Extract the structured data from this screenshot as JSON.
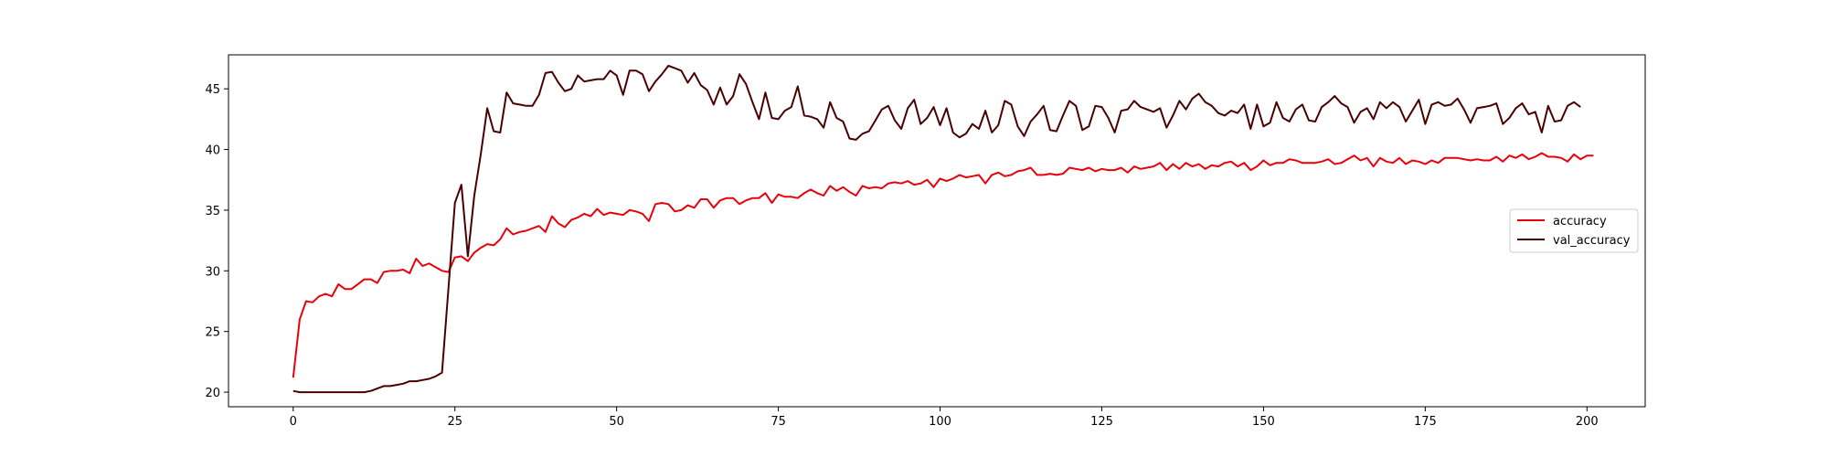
{
  "chart_data": {
    "type": "line",
    "title": "",
    "xlabel": "",
    "ylabel": "",
    "xlim": [
      -10,
      209
    ],
    "ylim": [
      18.8,
      47.8
    ],
    "xticks": [
      0,
      25,
      50,
      75,
      100,
      125,
      150,
      175,
      200
    ],
    "yticks": [
      20,
      25,
      30,
      35,
      40,
      45
    ],
    "xtick_labels": [
      "0",
      "25",
      "50",
      "75",
      "100",
      "125",
      "150",
      "175",
      "200"
    ],
    "ytick_labels": [
      "20",
      "25",
      "30",
      "35",
      "40",
      "45"
    ],
    "grid": false,
    "legend_position": "center-right",
    "series": [
      {
        "name": "accuracy",
        "color": "#e8000b",
        "x_start": 0,
        "values": [
          21.2,
          26.0,
          27.5,
          27.4,
          27.9,
          28.1,
          27.9,
          28.9,
          28.5,
          28.5,
          28.9,
          29.3,
          29.3,
          29.0,
          29.9,
          30.0,
          30.0,
          30.1,
          29.8,
          31.0,
          30.4,
          30.6,
          30.3,
          30.0,
          29.9,
          31.1,
          31.2,
          30.8,
          31.5,
          31.9,
          32.2,
          32.1,
          32.6,
          33.5,
          33.0,
          33.2,
          33.3,
          33.5,
          33.7,
          33.2,
          34.5,
          33.9,
          33.6,
          34.2,
          34.4,
          34.7,
          34.5,
          35.1,
          34.6,
          34.8,
          34.7,
          34.6,
          35.0,
          34.9,
          34.7,
          34.1,
          35.5,
          35.6,
          35.5,
          34.9,
          35.0,
          35.4,
          35.2,
          35.9,
          35.9,
          35.2,
          35.8,
          36.0,
          36.0,
          35.5,
          35.8,
          36.0,
          36.0,
          36.4,
          35.6,
          36.3,
          36.1,
          36.1,
          36.0,
          36.4,
          36.7,
          36.4,
          36.2,
          37.0,
          36.6,
          36.9,
          36.5,
          36.2,
          37.0,
          36.8,
          36.9,
          36.8,
          37.2,
          37.3,
          37.2,
          37.4,
          37.1,
          37.2,
          37.5,
          36.9,
          37.6,
          37.4,
          37.6,
          37.9,
          37.7,
          37.8,
          37.9,
          37.2,
          37.9,
          38.1,
          37.8,
          37.9,
          38.2,
          38.3,
          38.5,
          37.9,
          37.9,
          38.0,
          37.9,
          38.0,
          38.5,
          38.4,
          38.3,
          38.5,
          38.2,
          38.4,
          38.3,
          38.3,
          38.5,
          38.1,
          38.6,
          38.4,
          38.5,
          38.6,
          38.9,
          38.3,
          38.8,
          38.4,
          38.9,
          38.6,
          38.8,
          38.4,
          38.7,
          38.6,
          38.9,
          39.0,
          38.6,
          38.9,
          38.3,
          38.6,
          39.1,
          38.7,
          38.9,
          38.9,
          39.2,
          39.1,
          38.9,
          38.9,
          38.9,
          39.0,
          39.2,
          38.8,
          38.9,
          39.2,
          39.5,
          39.1,
          39.3,
          38.6,
          39.3,
          39.0,
          38.9,
          39.3,
          38.8,
          39.1,
          39.0,
          38.8,
          39.1,
          38.9,
          39.3,
          39.3,
          39.3,
          39.2,
          39.1,
          39.2,
          39.1,
          39.1,
          39.4,
          39.0,
          39.5,
          39.3,
          39.6,
          39.2,
          39.4,
          39.7,
          39.4,
          39.4,
          39.3,
          39.0,
          39.6,
          39.2,
          39.5,
          39.5
        ]
      },
      {
        "name": "val_accuracy",
        "color": "#4a0000",
        "x_start": 0,
        "values": [
          20.1,
          20.0,
          20.0,
          20.0,
          20.0,
          20.0,
          20.0,
          20.0,
          20.0,
          20.0,
          20.0,
          20.0,
          20.1,
          20.3,
          20.5,
          20.5,
          20.6,
          20.7,
          20.9,
          20.9,
          21.0,
          21.1,
          21.3,
          21.6,
          28.5,
          35.6,
          37.1,
          31.2,
          36.2,
          39.6,
          43.4,
          41.5,
          41.4,
          44.7,
          43.8,
          43.7,
          43.6,
          43.6,
          44.5,
          46.3,
          46.4,
          45.5,
          44.8,
          45.0,
          46.1,
          45.6,
          45.7,
          45.8,
          45.8,
          46.5,
          46.1,
          44.5,
          46.5,
          46.5,
          46.2,
          44.8,
          45.6,
          46.2,
          46.9,
          46.7,
          46.5,
          45.5,
          46.3,
          45.3,
          44.9,
          43.7,
          45.1,
          43.7,
          44.4,
          46.2,
          45.4,
          43.9,
          42.5,
          44.7,
          42.6,
          42.5,
          43.2,
          43.5,
          45.2,
          42.8,
          42.7,
          42.5,
          41.8,
          43.9,
          42.6,
          42.3,
          40.9,
          40.8,
          41.3,
          41.5,
          42.4,
          43.3,
          43.6,
          42.4,
          41.7,
          43.4,
          44.1,
          42.1,
          42.6,
          43.5,
          42.0,
          43.4,
          41.4,
          41.0,
          41.3,
          42.1,
          41.7,
          43.2,
          41.4,
          42.0,
          44.0,
          43.7,
          41.9,
          41.1,
          42.3,
          42.9,
          43.6,
          41.6,
          41.5,
          42.8,
          44.0,
          43.6,
          41.6,
          41.9,
          43.6,
          43.5,
          42.6,
          41.4,
          43.2,
          43.3,
          44.0,
          43.5,
          43.3,
          43.1,
          43.4,
          41.8,
          42.8,
          44.0,
          43.3,
          44.2,
          44.6,
          43.9,
          43.6,
          43.0,
          42.8,
          43.2,
          43.0,
          43.7,
          41.7,
          43.7,
          41.9,
          42.2,
          43.9,
          42.6,
          42.3,
          43.3,
          43.7,
          42.4,
          42.3,
          43.5,
          43.9,
          44.4,
          43.8,
          43.5,
          42.2,
          43.1,
          43.4,
          42.5,
          43.9,
          43.4,
          43.9,
          43.5,
          42.3,
          43.2,
          44.1,
          42.1,
          43.7,
          43.9,
          43.6,
          43.7,
          44.2,
          43.3,
          42.2,
          43.4,
          43.5,
          43.6,
          43.8,
          42.1,
          42.6,
          43.4,
          43.8,
          42.9,
          43.1,
          41.4,
          43.6,
          42.3,
          42.4,
          43.6,
          43.9,
          43.5
        ]
      }
    ]
  }
}
